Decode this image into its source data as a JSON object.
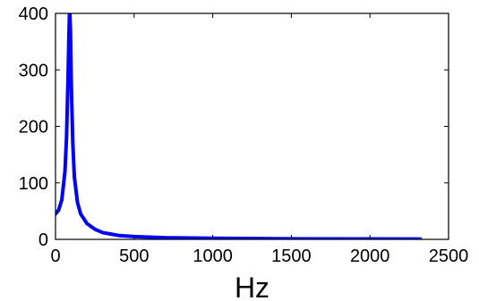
{
  "chart_data": {
    "type": "line",
    "title": "",
    "xlabel": "Hz",
    "ylabel": "",
    "xlim": [
      0,
      2500
    ],
    "ylim": [
      0,
      400
    ],
    "xticks": [
      0,
      500,
      1000,
      1500,
      2000,
      2500
    ],
    "yticks": [
      0,
      100,
      200,
      300,
      400
    ],
    "grid": false,
    "legend": "none",
    "series": [
      {
        "color": "#0000ff",
        "x": [
          0,
          20,
          40,
          60,
          70,
          80,
          85,
          90,
          95,
          100,
          110,
          120,
          140,
          160,
          200,
          250,
          300,
          400,
          500,
          700,
          1000,
          1500,
          2000,
          2320
        ],
        "y": [
          45,
          52,
          70,
          120,
          180,
          290,
          360,
          410,
          370,
          280,
          170,
          110,
          65,
          45,
          28,
          18,
          12,
          7,
          5,
          3,
          2,
          1,
          0.8,
          0.6
        ]
      }
    ]
  }
}
